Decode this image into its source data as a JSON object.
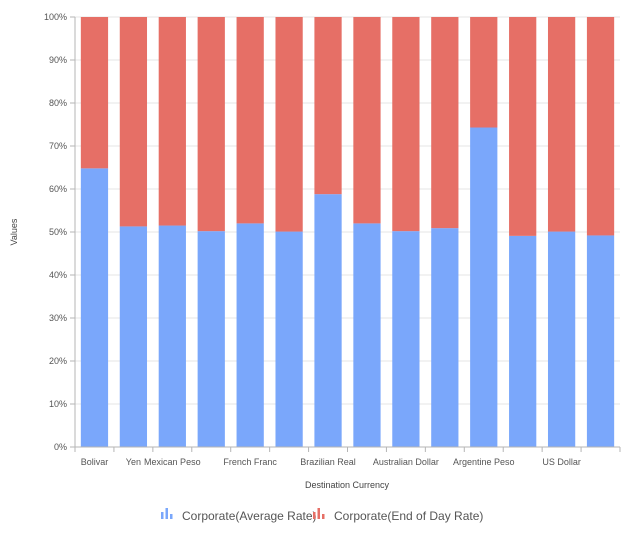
{
  "chart_data": {
    "type": "bar",
    "stacking": "100%",
    "categories": [
      "Bolivar",
      "Yen",
      "Mexican Peso",
      "",
      "French Franc",
      "",
      "Brazilian Real",
      "",
      "Australian Dollar",
      "",
      "Argentine Peso",
      "",
      "US Dollar",
      ""
    ],
    "series": [
      {
        "name": "Corporate(Average Rate)",
        "color": "#7aa7fb",
        "values": [
          64.8,
          51.3,
          51.5,
          50.2,
          52.0,
          50.1,
          58.8,
          52.0,
          50.2,
          50.9,
          74.3,
          49.1,
          50.1,
          49.2
        ]
      },
      {
        "name": "Corporate(End of Day Rate)",
        "color": "#e66f66",
        "values": [
          35.2,
          48.7,
          48.5,
          49.8,
          48.0,
          49.9,
          41.2,
          48.0,
          49.8,
          49.1,
          25.7,
          50.9,
          49.9,
          50.8
        ]
      }
    ],
    "xlabel": "Destination Currency",
    "ylabel": "Values",
    "ylim": [
      0,
      100
    ],
    "yticks": [
      "0%",
      "10%",
      "20%",
      "30%",
      "40%",
      "50%",
      "60%",
      "70%",
      "80%",
      "90%",
      "100%"
    ],
    "grid": true,
    "legend": "bottom-center"
  }
}
